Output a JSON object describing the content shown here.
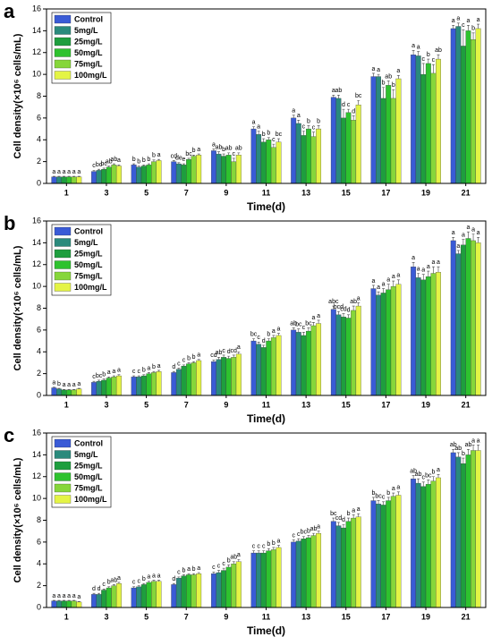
{
  "chart_data": [
    {
      "type": "bar",
      "panel_label": "a",
      "x_label": "Time(d)",
      "y_label": "Cell density(×10⁶ cells/mL)",
      "categories": [
        "1",
        "3",
        "5",
        "7",
        "9",
        "11",
        "13",
        "15",
        "17",
        "19",
        "21"
      ],
      "ylim": [
        0,
        16
      ],
      "yticks": [
        0,
        2,
        4,
        6,
        8,
        10,
        12,
        14,
        16
      ],
      "legend": "upper-left",
      "series": [
        {
          "name": "Control",
          "color": "#3a5bd6",
          "values": [
            0.6,
            1.1,
            1.7,
            2.0,
            3.0,
            5.0,
            6.0,
            7.9,
            9.8,
            11.8,
            14.2
          ],
          "errors": [
            0.05,
            0.1,
            0.1,
            0.1,
            0.15,
            0.2,
            0.25,
            0.2,
            0.3,
            0.4,
            0.3
          ],
          "letters": [
            "a",
            "c",
            "b",
            "cd",
            "a",
            "a",
            "a",
            "a",
            "a",
            "a",
            "a"
          ]
        },
        {
          "name": "5mg/L",
          "color": "#2a8a7c",
          "values": [
            0.6,
            1.2,
            1.5,
            1.8,
            2.7,
            4.5,
            5.5,
            7.8,
            9.8,
            11.7,
            14.4
          ],
          "errors": [
            0.05,
            0.1,
            0.1,
            0.1,
            0.2,
            0.3,
            0.3,
            0.3,
            0.2,
            0.4,
            0.3
          ],
          "letters": [
            "a",
            "bc",
            "b",
            "de",
            "ab",
            "a",
            "a",
            "ab",
            "a",
            "a",
            "a"
          ]
        },
        {
          "name": "25mg/L",
          "color": "#1e9e3e",
          "values": [
            0.6,
            1.3,
            1.6,
            1.7,
            2.5,
            3.8,
            4.4,
            6.0,
            7.8,
            10.0,
            12.6
          ],
          "errors": [
            0.05,
            0.1,
            0.1,
            0.1,
            0.2,
            0.3,
            0.4,
            0.8,
            1.0,
            1.0,
            1.5
          ],
          "letters": [
            "a",
            "bc",
            "b",
            "e",
            "b",
            "b",
            "c",
            "d",
            "b",
            "c",
            "c"
          ]
        },
        {
          "name": "50mg/L",
          "color": "#2ec22e",
          "values": [
            0.6,
            1.5,
            1.7,
            2.2,
            2.6,
            4.0,
            5.0,
            6.5,
            9.0,
            11.0,
            14.0
          ],
          "errors": [
            0.05,
            0.1,
            0.1,
            0.1,
            0.2,
            0.2,
            0.3,
            0.3,
            0.4,
            0.4,
            0.5
          ],
          "letters": [
            "a",
            "ab",
            "b",
            "bc",
            "ab",
            "b",
            "b",
            "c",
            "ab",
            "b",
            "a"
          ]
        },
        {
          "name": "75mg/L",
          "color": "#86d63a",
          "values": [
            0.6,
            1.7,
            2.0,
            2.5,
            2.0,
            3.3,
            4.3,
            5.8,
            7.8,
            10.1,
            13.2
          ],
          "errors": [
            0.05,
            0.1,
            0.15,
            0.1,
            0.3,
            0.3,
            0.4,
            0.4,
            0.8,
            0.8,
            0.6
          ],
          "letters": [
            "a",
            "ab",
            "b",
            "b",
            "c",
            "c",
            "c",
            "d",
            "b",
            "c",
            "b"
          ]
        },
        {
          "name": "100mg/L",
          "color": "#e4f445",
          "values": [
            0.6,
            1.6,
            2.1,
            2.6,
            2.6,
            3.8,
            5.0,
            7.2,
            9.6,
            11.4,
            14.2
          ],
          "errors": [
            0.05,
            0.1,
            0.1,
            0.1,
            0.2,
            0.3,
            0.3,
            0.4,
            0.3,
            0.4,
            0.4
          ],
          "letters": [
            "a",
            "a",
            "a",
            "a",
            "ab",
            "bc",
            "b",
            "bc",
            "a",
            "ab",
            "a"
          ]
        }
      ]
    },
    {
      "type": "bar",
      "panel_label": "b",
      "x_label": "Time(d)",
      "y_label": "Cell density(×10⁶ cells/mL)",
      "categories": [
        "1",
        "3",
        "5",
        "7",
        "9",
        "11",
        "13",
        "15",
        "17",
        "19",
        "21"
      ],
      "ylim": [
        0,
        16
      ],
      "yticks": [
        0,
        2,
        4,
        6,
        8,
        10,
        12,
        14,
        16
      ],
      "legend": "upper-left",
      "series": [
        {
          "name": "Control",
          "color": "#3a5bd6",
          "values": [
            0.7,
            1.2,
            1.7,
            2.1,
            3.1,
            5.0,
            6.0,
            7.9,
            9.8,
            11.8,
            14.2
          ],
          "errors": [
            0.05,
            0.1,
            0.1,
            0.1,
            0.15,
            0.2,
            0.2,
            0.3,
            0.3,
            0.4,
            0.3
          ],
          "letters": [
            "a",
            "c",
            "c",
            "d",
            "cd",
            "bc",
            "ab",
            "abc",
            "a",
            "a",
            "a"
          ]
        },
        {
          "name": "5mg/L",
          "color": "#2a8a7c",
          "values": [
            0.6,
            1.3,
            1.7,
            2.4,
            3.3,
            4.7,
            5.8,
            7.4,
            9.2,
            10.8,
            13.0
          ],
          "errors": [
            0.05,
            0.1,
            0.1,
            0.1,
            0.2,
            0.2,
            0.3,
            0.3,
            0.3,
            0.4,
            0.3
          ],
          "letters": [
            "b",
            "bc",
            "c",
            "c",
            "ab",
            "c",
            "bc",
            "bcd",
            "a",
            "a",
            "a"
          ]
        },
        {
          "name": "25mg/L",
          "color": "#1e9e3e",
          "values": [
            0.5,
            1.4,
            1.8,
            2.7,
            3.5,
            4.4,
            5.5,
            7.2,
            9.4,
            10.6,
            13.8
          ],
          "errors": [
            0.05,
            0.1,
            0.1,
            0.1,
            0.2,
            0.2,
            0.3,
            0.3,
            0.4,
            0.5,
            0.5
          ],
          "letters": [
            "a",
            "b",
            "b",
            "c",
            "c",
            "d",
            "c",
            "cd",
            "a",
            "a",
            "a"
          ]
        },
        {
          "name": "50mg/L",
          "color": "#2ec22e",
          "values": [
            0.5,
            1.6,
            2.0,
            2.9,
            3.4,
            5.0,
            5.9,
            7.1,
            9.7,
            10.9,
            14.4
          ],
          "errors": [
            0.05,
            0.1,
            0.1,
            0.1,
            0.2,
            0.2,
            0.3,
            0.3,
            0.5,
            0.5,
            0.6
          ],
          "letters": [
            "a",
            "a",
            "a",
            "b",
            "d",
            "b",
            "bc",
            "d",
            "a",
            "a",
            "a"
          ]
        },
        {
          "name": "75mg/L",
          "color": "#86d63a",
          "values": [
            0.5,
            1.7,
            2.1,
            3.0,
            3.5,
            5.3,
            6.4,
            7.8,
            10.0,
            11.2,
            14.2
          ],
          "errors": [
            0.05,
            0.1,
            0.1,
            0.1,
            0.2,
            0.2,
            0.3,
            0.4,
            0.5,
            0.6,
            0.6
          ],
          "letters": [
            "a",
            "a",
            "b",
            "b",
            "cd",
            "a",
            "a",
            "ab",
            "a",
            "a",
            "a"
          ]
        },
        {
          "name": "100mg/L",
          "color": "#e4f445",
          "values": [
            0.6,
            1.8,
            2.2,
            3.2,
            3.8,
            5.5,
            6.6,
            8.2,
            10.2,
            11.3,
            14.0
          ],
          "errors": [
            0.05,
            0.1,
            0.1,
            0.1,
            0.2,
            0.2,
            0.3,
            0.3,
            0.4,
            0.5,
            0.5
          ],
          "letters": [
            "a",
            "a",
            "a",
            "a",
            "a",
            "a",
            "a",
            "a",
            "a",
            "a",
            "a"
          ]
        }
      ]
    },
    {
      "type": "bar",
      "panel_label": "c",
      "x_label": "Time(d)",
      "y_label": "Cell density(×10⁶ cells/mL)",
      "categories": [
        "1",
        "3",
        "5",
        "7",
        "9",
        "11",
        "13",
        "15",
        "17",
        "19",
        "21"
      ],
      "ylim": [
        0,
        16
      ],
      "yticks": [
        0,
        2,
        4,
        6,
        8,
        10,
        12,
        14,
        16
      ],
      "legend": "upper-left",
      "series": [
        {
          "name": "Control",
          "color": "#3a5bd6",
          "values": [
            0.6,
            1.2,
            1.8,
            2.1,
            3.1,
            5.0,
            6.0,
            7.9,
            9.8,
            11.8,
            14.2
          ],
          "errors": [
            0.05,
            0.1,
            0.1,
            0.1,
            0.15,
            0.2,
            0.2,
            0.3,
            0.3,
            0.3,
            0.3
          ],
          "letters": [
            "a",
            "d",
            "c",
            "d",
            "c",
            "c",
            "c",
            "bc",
            "b",
            "ab",
            "ab"
          ]
        },
        {
          "name": "5mg/L",
          "color": "#2a8a7c",
          "values": [
            0.6,
            1.2,
            1.9,
            2.7,
            3.2,
            5.0,
            6.1,
            7.5,
            9.5,
            11.4,
            13.8
          ],
          "errors": [
            0.05,
            0.1,
            0.1,
            0.1,
            0.2,
            0.2,
            0.2,
            0.3,
            0.3,
            0.4,
            0.4
          ],
          "letters": [
            "a",
            "d",
            "c",
            "c",
            "c",
            "c",
            "c",
            "cd",
            "bc",
            "ab",
            "ab"
          ]
        },
        {
          "name": "25mg/L",
          "color": "#1e9e3e",
          "values": [
            0.6,
            1.6,
            2.1,
            2.9,
            3.4,
            5.0,
            6.3,
            7.3,
            9.4,
            11.1,
            13.2
          ],
          "errors": [
            0.05,
            0.1,
            0.1,
            0.1,
            0.2,
            0.2,
            0.2,
            0.3,
            0.3,
            0.4,
            0.5
          ],
          "letters": [
            "a",
            "c",
            "b",
            "b",
            "c",
            "c",
            "bc",
            "d",
            "c",
            "c",
            "b"
          ]
        },
        {
          "name": "50mg/L",
          "color": "#2ec22e",
          "values": [
            0.6,
            1.8,
            2.3,
            3.0,
            3.7,
            5.2,
            6.4,
            7.9,
            9.8,
            11.3,
            14.0
          ],
          "errors": [
            0.05,
            0.1,
            0.1,
            0.1,
            0.2,
            0.2,
            0.2,
            0.3,
            0.3,
            0.4,
            0.5
          ],
          "letters": [
            "a",
            "b",
            "a",
            "a",
            "b",
            "b",
            "b",
            "b",
            "b",
            "bc",
            "ab"
          ]
        },
        {
          "name": "75mg/L",
          "color": "#86d63a",
          "values": [
            0.6,
            2.0,
            2.4,
            3.0,
            4.0,
            5.3,
            6.6,
            8.2,
            10.2,
            11.6,
            14.4
          ],
          "errors": [
            0.05,
            0.1,
            0.1,
            0.1,
            0.2,
            0.2,
            0.2,
            0.3,
            0.3,
            0.4,
            0.5
          ],
          "letters": [
            "a",
            "ab",
            "a",
            "b",
            "ab",
            "b",
            "ab",
            "a",
            "a",
            "b",
            "a"
          ]
        },
        {
          "name": "100mg/L",
          "color": "#e4f445",
          "values": [
            0.5,
            2.2,
            2.4,
            3.1,
            4.2,
            5.5,
            6.8,
            8.3,
            10.3,
            11.9,
            14.4
          ],
          "errors": [
            0.05,
            0.1,
            0.1,
            0.1,
            0.2,
            0.2,
            0.2,
            0.3,
            0.3,
            0.3,
            0.5
          ],
          "letters": [
            "a",
            "a",
            "a",
            "a",
            "a",
            "a",
            "a",
            "a",
            "a",
            "a",
            "a"
          ]
        }
      ]
    }
  ]
}
